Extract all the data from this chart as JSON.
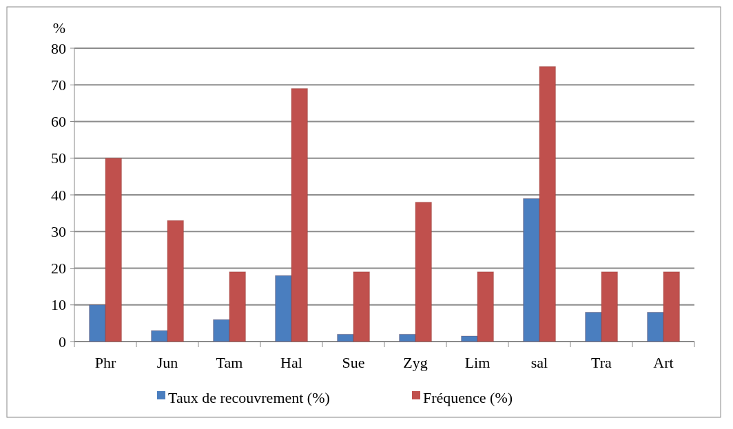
{
  "chart_data": {
    "type": "bar",
    "ylabel": "%",
    "categories": [
      "Phr",
      "Jun",
      "Tam",
      "Hal",
      "Sue",
      "Zyg",
      "Lim",
      "sal",
      "Tra",
      "Art"
    ],
    "series": [
      {
        "name": "Taux de recouvrement (%)",
        "color": "#4a7ebf",
        "values": [
          10,
          3,
          6,
          18,
          2,
          2,
          1.5,
          39,
          8,
          8
        ]
      },
      {
        "name": "Fréquence (%)",
        "color": "#c0504d",
        "values": [
          50,
          33,
          19,
          69,
          19,
          38,
          19,
          75,
          19,
          19
        ]
      }
    ],
    "ylim": [
      0,
      80
    ],
    "yticks": [
      0,
      10,
      20,
      30,
      40,
      50,
      60,
      70,
      80
    ],
    "grid": "y",
    "legend": "bottom"
  }
}
